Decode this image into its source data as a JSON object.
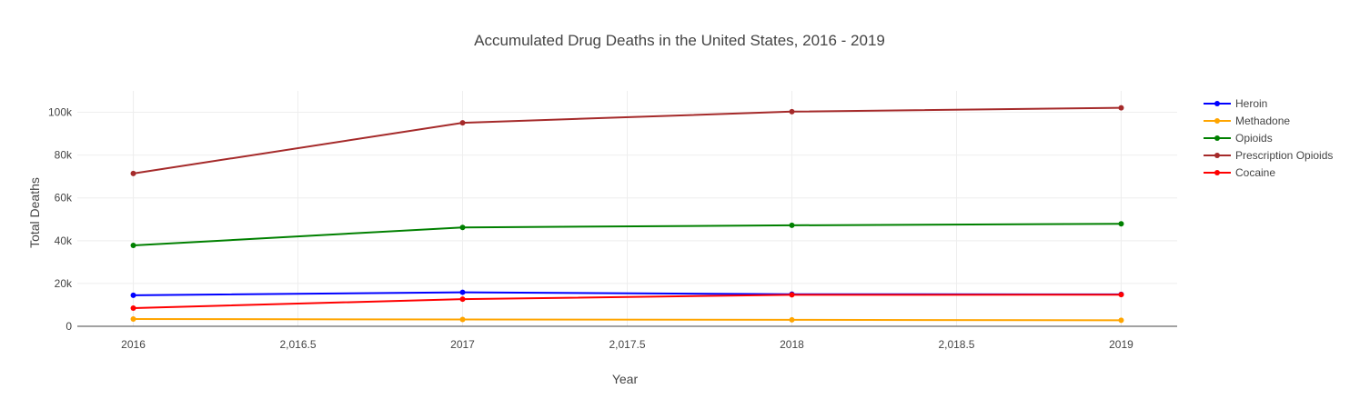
{
  "chart_data": {
    "type": "line",
    "title": "Accumulated Drug Deaths in the United States, 2016 - 2019",
    "xlabel": "Year",
    "ylabel": "Total Deaths",
    "x": [
      2016,
      2017,
      2018,
      2019
    ],
    "x_ticks": [
      "2016",
      "2,016.5",
      "2017",
      "2,017.5",
      "2018",
      "2,018.5",
      "2019"
    ],
    "y_ticks": [
      "0",
      "20k",
      "40k",
      "60k",
      "80k",
      "100k"
    ],
    "xlim": [
      2015.83,
      2019.17
    ],
    "ylim": [
      0,
      110000
    ],
    "grid": true,
    "legend_position": "top-right",
    "series": [
      {
        "name": "Heroin",
        "color": "#0000ff",
        "values": [
          14500,
          15900,
          15000,
          14900
        ]
      },
      {
        "name": "Methadone",
        "color": "#ffa500",
        "values": [
          3400,
          3200,
          3000,
          2800
        ]
      },
      {
        "name": "Opioids",
        "color": "#008000",
        "values": [
          37800,
          46200,
          47200,
          47900
        ]
      },
      {
        "name": "Prescription Opioids",
        "color": "#a52a2a",
        "values": [
          71400,
          95100,
          100300,
          102100
        ]
      },
      {
        "name": "Cocaine",
        "color": "#ff0000",
        "values": [
          8500,
          12700,
          14700,
          14800
        ]
      }
    ]
  }
}
